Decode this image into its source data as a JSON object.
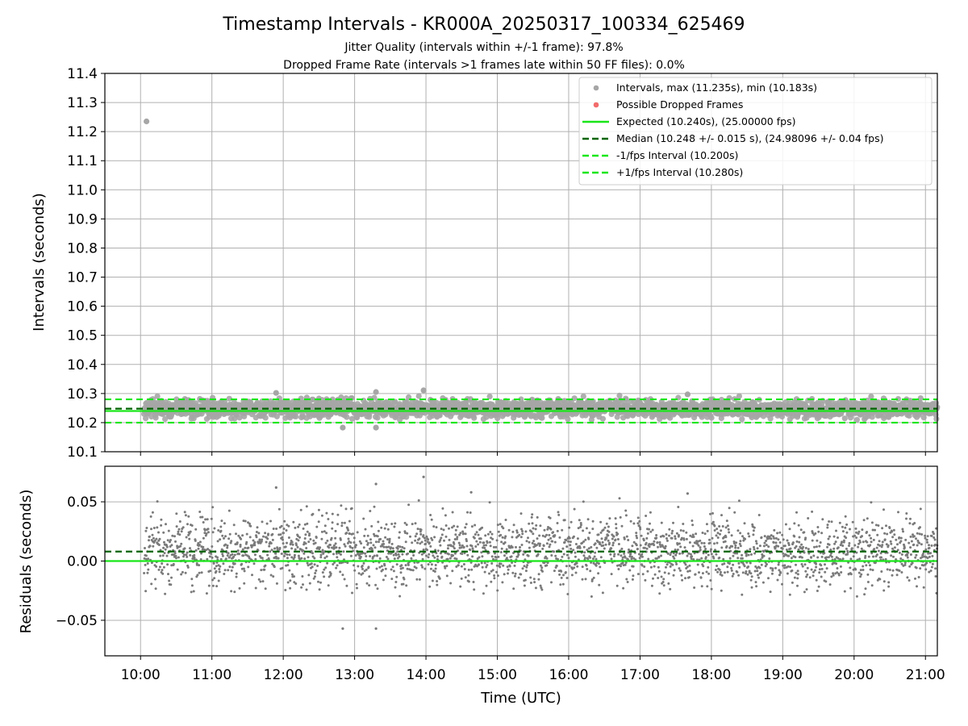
{
  "chart_data": [
    {
      "type": "scatter",
      "title": "Timestamp Intervals - KR000A_20250317_100334_625469",
      "subtitle_lines": [
        "Jitter Quality (intervals within +/-1 frame): 97.8%",
        "Dropped Frame Rate (intervals >1 frames late within 50 FF files): 0.0%"
      ],
      "xlabel": "",
      "ylabel": "Intervals (seconds)",
      "xlim": [
        "09:30",
        "21:10"
      ],
      "ylim": [
        10.1,
        11.4
      ],
      "yticks": [
        "10.1",
        "10.2",
        "10.3",
        "10.4",
        "10.5",
        "10.6",
        "10.7",
        "10.8",
        "10.9",
        "11.0",
        "11.1",
        "11.2",
        "11.3",
        "11.4"
      ],
      "grid": true,
      "legend_position": "top-right",
      "legend": [
        "Intervals, max (11.235s), min (10.183s)",
        "Possible Dropped Frames",
        "Expected (10.240s), (25.00000 fps)",
        "Median (10.248 +/- 0.015 s), (24.98096 +/- 0.04 fps)",
        "-1/fps Interval (10.200s)",
        "+1/fps Interval (10.280s)"
      ],
      "series": [
        {
          "name": "Intervals, max (11.235s), min (10.183s)",
          "kind": "points",
          "color": "#a6a6a6",
          "x_range": [
            "10:03",
            "21:10"
          ],
          "center": 10.248,
          "spread_sd": 0.015,
          "outliers": [
            {
              "x": "10:05",
              "y": 11.235
            },
            {
              "x": "12:50",
              "y": 10.183
            },
            {
              "x": "13:18",
              "y": 10.183
            },
            {
              "x": "13:58",
              "y": 10.311
            },
            {
              "x": "13:18",
              "y": 10.305
            },
            {
              "x": "11:54",
              "y": 10.302
            },
            {
              "x": "17:40",
              "y": 10.297
            }
          ]
        },
        {
          "name": "Possible Dropped Frames",
          "kind": "points",
          "color": "#f26b6b",
          "values": []
        },
        {
          "name": "Expected (10.240s), (25.00000 fps)",
          "kind": "hline",
          "y": 10.24,
          "color": "#19e619"
        },
        {
          "name": "Median (10.248 +/- 0.015 s), (24.98096 +/- 0.04 fps)",
          "kind": "hline",
          "y": 10.248,
          "color": "#006400"
        },
        {
          "name": "-1/fps Interval (10.200s)",
          "kind": "hline",
          "y": 10.2,
          "color": "#19e619"
        },
        {
          "name": "+1/fps Interval (10.280s)",
          "kind": "hline",
          "y": 10.28,
          "color": "#19e619"
        }
      ]
    },
    {
      "type": "scatter",
      "title": "",
      "xlabel": "Time (UTC)",
      "ylabel": "Residuals (seconds)",
      "xlim": [
        "09:30",
        "21:10"
      ],
      "xticks": [
        "10:00",
        "11:00",
        "12:00",
        "13:00",
        "14:00",
        "15:00",
        "16:00",
        "17:00",
        "18:00",
        "19:00",
        "20:00",
        "21:00"
      ],
      "ylim": [
        -0.08,
        0.08
      ],
      "yticks": [
        "0.05",
        "0.00",
        "−0.05"
      ],
      "ytick_values": [
        0.05,
        0.0,
        -0.05
      ],
      "grid": true,
      "series": [
        {
          "name": "",
          "kind": "points",
          "color": "#7a7a7a",
          "x_range": [
            "10:03",
            "21:10"
          ],
          "center": 0.008,
          "spread_sd": 0.015,
          "outliers": [
            {
              "x": "13:58",
              "y": 0.071
            },
            {
              "x": "13:18",
              "y": 0.065
            },
            {
              "x": "11:54",
              "y": 0.062
            },
            {
              "x": "14:38",
              "y": 0.058
            },
            {
              "x": "17:40",
              "y": 0.057
            },
            {
              "x": "12:50",
              "y": -0.057
            },
            {
              "x": "13:18",
              "y": -0.057
            }
          ]
        },
        {
          "name": "",
          "kind": "hline",
          "y": 0.0,
          "color": "#19e619"
        },
        {
          "name": "",
          "kind": "hline",
          "y": 0.008,
          "color": "#006400"
        }
      ]
    }
  ]
}
